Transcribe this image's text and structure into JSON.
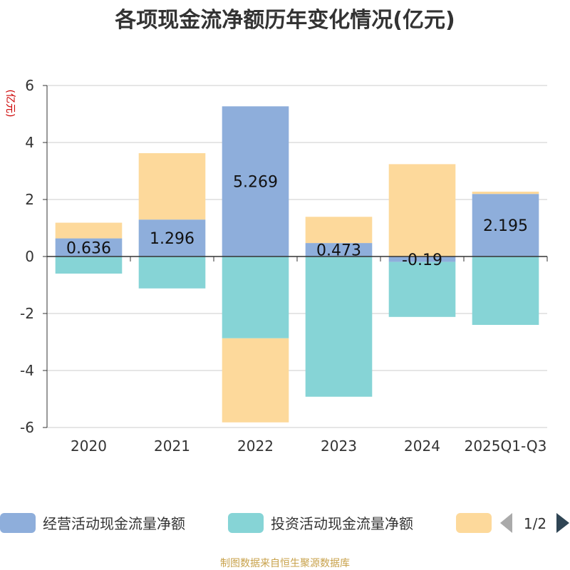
{
  "chart_data": {
    "type": "bar",
    "stacked": true,
    "title": "各项现金流净额历年变化情况(亿元)",
    "ylabel": "(亿元)",
    "xlabel": "",
    "ylim": [
      -6,
      6
    ],
    "yticks": [
      6,
      4,
      2,
      0,
      -2,
      -4,
      -6
    ],
    "grid": true,
    "legend_position": "bottom",
    "categories": [
      "2020",
      "2021",
      "2022",
      "2023",
      "2024",
      "2025Q1-Q3"
    ],
    "series": [
      {
        "name": "经营活动现金流量净额",
        "color": "#8eaedb",
        "values": [
          0.636,
          1.296,
          5.269,
          0.473,
          -0.19,
          2.195
        ],
        "labels": [
          "0.636",
          "1.296",
          "5.269",
          "0.473",
          "-0.19",
          "2.195"
        ]
      },
      {
        "name": "投资活动现金流量净额",
        "color": "#86d4d6",
        "values": [
          -0.6,
          -1.12,
          -2.87,
          -4.92,
          -1.93,
          -2.4
        ]
      },
      {
        "name": "",
        "color": "#fdd99b",
        "values": [
          0.55,
          2.33,
          -2.95,
          0.92,
          3.24,
          0.08
        ]
      }
    ],
    "legend": {
      "page": "1/2",
      "prev_color": "#aaaaaa",
      "next_color": "#2f4554"
    },
    "source": "制图数据来自恒生聚源数据库"
  }
}
